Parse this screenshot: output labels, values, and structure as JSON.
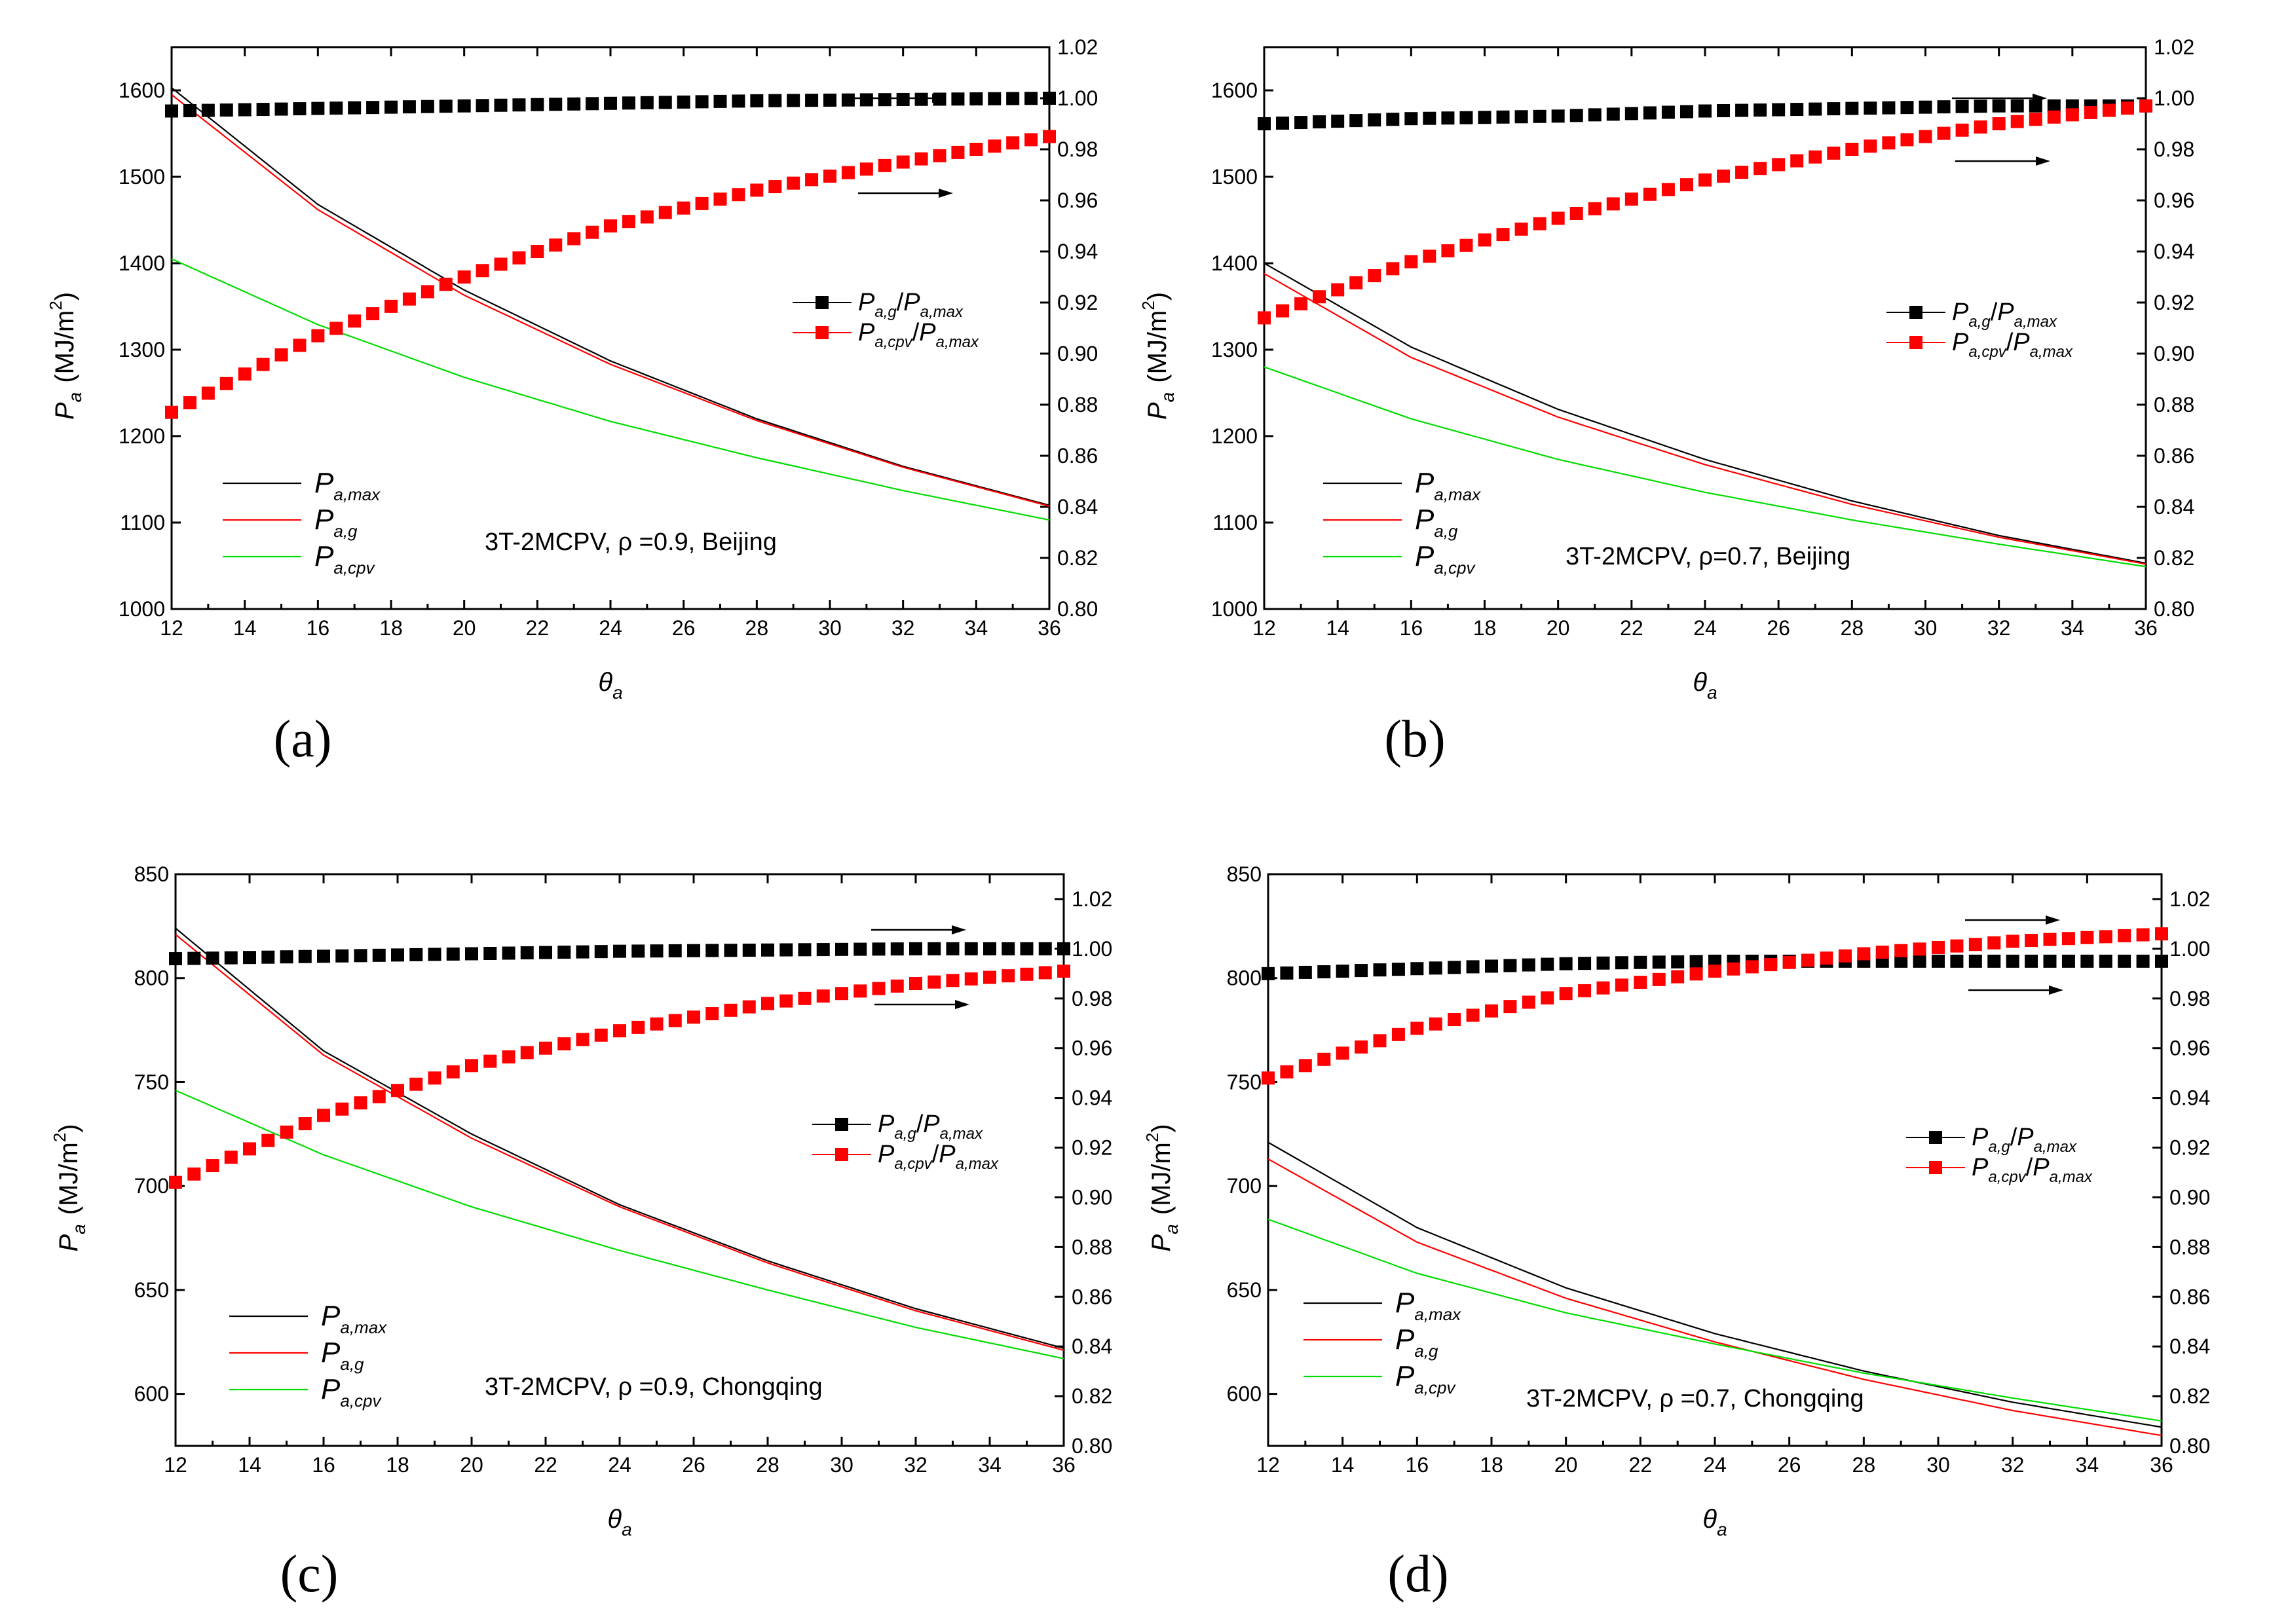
{
  "figure": {
    "panel_labels": [
      "(a)",
      "(b)",
      "(c)",
      "(d)"
    ]
  },
  "colors": {
    "max": "#000000",
    "g": "#ff0000",
    "cpv": "#00dd00",
    "axis": "#000000"
  },
  "legend": {
    "left": [
      {
        "key": "max",
        "main": "P",
        "sub": "a,max"
      },
      {
        "key": "g",
        "main": "P",
        "sub": "a,g"
      },
      {
        "key": "cpv",
        "main": "P",
        "sub": "a,cpv"
      }
    ],
    "right": [
      {
        "key": "ratio_g",
        "main1": "P",
        "sub1": "a,g",
        "slash": "/",
        "main2": "P",
        "sub2": "a,max"
      },
      {
        "key": "ratio_cpv",
        "main1": "P",
        "sub1": "a,cpv",
        "slash": "/",
        "main2": "P",
        "sub2": "a,max"
      }
    ]
  },
  "axis_text": {
    "x_main": "θ",
    "x_sub": "a",
    "y_main": "P",
    "y_sub": "a",
    "y_unit": "(MJ/m",
    "y_unit_sup": "2",
    "y_unit_close": ")"
  },
  "chart_data": [
    {
      "type": "line",
      "panel": "(a)",
      "annotation": "3T-2MCPV, ρ =0.9, Beijing",
      "x": [
        12,
        16,
        20,
        24,
        28,
        32,
        36
      ],
      "xlim": [
        12,
        36
      ],
      "xticks": [
        12,
        14,
        16,
        18,
        20,
        22,
        24,
        26,
        28,
        30,
        32,
        34,
        36
      ],
      "ylim_left": [
        1000,
        1650
      ],
      "yticks_left": [
        1000,
        1100,
        1200,
        1300,
        1400,
        1500,
        1600
      ],
      "ylim_right": [
        0.8,
        1.02
      ],
      "yticks_right": [
        0.8,
        0.82,
        0.84,
        0.86,
        0.88,
        0.9,
        0.92,
        0.94,
        0.96,
        0.98,
        1.0,
        1.02
      ],
      "series_left": [
        {
          "key": "max",
          "name": "Pa,max",
          "values": [
            1603,
            1468,
            1369,
            1287,
            1220,
            1165,
            1120
          ]
        },
        {
          "key": "g",
          "name": "Pa,g",
          "values": [
            1595,
            1462,
            1363,
            1283,
            1218,
            1164,
            1119
          ]
        },
        {
          "key": "cpv",
          "name": "Pa,cpv",
          "values": [
            1405,
            1329,
            1268,
            1217,
            1175,
            1137,
            1103
          ]
        }
      ],
      "series_right": [
        {
          "key": "ratio_g",
          "name": "Pa,g/Pa,max",
          "values": [
            0.995,
            0.996,
            0.997,
            0.998,
            0.999,
            0.9995,
            1.0
          ]
        },
        {
          "key": "ratio_cpv",
          "name": "Pa,cpv/Pa,max",
          "values": [
            0.877,
            0.907,
            0.93,
            0.95,
            0.964,
            0.975,
            0.985
          ]
        }
      ]
    },
    {
      "type": "line",
      "panel": "(b)",
      "annotation": "3T-2MCPV, ρ=0.7, Beijing",
      "x": [
        12,
        16,
        20,
        24,
        28,
        32,
        36
      ],
      "xlim": [
        12,
        36
      ],
      "xticks": [
        12,
        14,
        16,
        18,
        20,
        22,
        24,
        26,
        28,
        30,
        32,
        34,
        36
      ],
      "ylim_left": [
        1000,
        1650
      ],
      "yticks_left": [
        1000,
        1100,
        1200,
        1300,
        1400,
        1500,
        1600
      ],
      "ylim_right": [
        0.8,
        1.02
      ],
      "yticks_right": [
        0.8,
        0.82,
        0.84,
        0.86,
        0.88,
        0.9,
        0.92,
        0.94,
        0.96,
        0.98,
        1.0,
        1.02
      ],
      "series_left": [
        {
          "key": "max",
          "name": "Pa,max",
          "values": [
            1400,
            1303,
            1231,
            1173,
            1125,
            1085,
            1053
          ]
        },
        {
          "key": "g",
          "name": "Pa,g",
          "values": [
            1388,
            1291,
            1222,
            1167,
            1121,
            1083,
            1052
          ]
        },
        {
          "key": "cpv",
          "name": "Pa,cpv",
          "values": [
            1280,
            1220,
            1173,
            1135,
            1103,
            1075,
            1049
          ]
        }
      ],
      "series_right": [
        {
          "key": "ratio_g",
          "name": "Pa,g/Pa,max",
          "values": [
            0.99,
            0.992,
            0.993,
            0.995,
            0.996,
            0.997,
            0.997
          ]
        },
        {
          "key": "ratio_cpv",
          "name": "Pa,cpv/Pa,max",
          "values": [
            0.914,
            0.936,
            0.953,
            0.968,
            0.98,
            0.99,
            0.997
          ]
        }
      ]
    },
    {
      "type": "line",
      "panel": "(c)",
      "annotation": "3T-2MCPV, ρ =0.9, Chongqing",
      "x": [
        12,
        16,
        20,
        24,
        28,
        32,
        36
      ],
      "xlim": [
        12,
        36
      ],
      "xticks": [
        12,
        14,
        16,
        18,
        20,
        22,
        24,
        26,
        28,
        30,
        32,
        34,
        36
      ],
      "ylim_left": [
        575,
        850
      ],
      "yticks_left": [
        600,
        650,
        700,
        750,
        800,
        850
      ],
      "ylim_right": [
        0.8,
        1.03
      ],
      "yticks_right": [
        0.8,
        0.82,
        0.84,
        0.86,
        0.88,
        0.9,
        0.92,
        0.94,
        0.96,
        0.98,
        1.0,
        1.02
      ],
      "series_left": [
        {
          "key": "max",
          "name": "Pa,max",
          "values": [
            824,
            765,
            725,
            691,
            664,
            641,
            622
          ]
        },
        {
          "key": "g",
          "name": "Pa,g",
          "values": [
            821,
            763,
            723,
            690,
            663,
            640,
            621
          ]
        },
        {
          "key": "cpv",
          "name": "Pa,cpv",
          "values": [
            746,
            715,
            690,
            669,
            650,
            632,
            617
          ]
        }
      ],
      "series_right": [
        {
          "key": "ratio_g",
          "name": "Pa,g/Pa,max",
          "values": [
            0.996,
            0.997,
            0.998,
            0.999,
            0.9995,
            1.0,
            1.0
          ]
        },
        {
          "key": "ratio_cpv",
          "name": "Pa,cpv/Pa,max",
          "values": [
            0.906,
            0.933,
            0.953,
            0.967,
            0.978,
            0.986,
            0.991
          ]
        }
      ]
    },
    {
      "type": "line",
      "panel": "(d)",
      "annotation": "3T-2MCPV, ρ =0.7, Chongqing",
      "x": [
        12,
        16,
        20,
        24,
        28,
        32,
        36
      ],
      "xlim": [
        12,
        36
      ],
      "xticks": [
        12,
        14,
        16,
        18,
        20,
        22,
        24,
        26,
        28,
        30,
        32,
        34,
        36
      ],
      "ylim_left": [
        575,
        850
      ],
      "yticks_left": [
        600,
        650,
        700,
        750,
        800,
        850
      ],
      "ylim_right": [
        0.8,
        1.03
      ],
      "yticks_right": [
        0.8,
        0.82,
        0.84,
        0.86,
        0.88,
        0.9,
        0.92,
        0.94,
        0.96,
        0.98,
        1.0,
        1.02
      ],
      "series_left": [
        {
          "key": "max",
          "name": "Pa,max",
          "values": [
            721,
            680,
            651,
            629,
            611,
            596,
            584
          ]
        },
        {
          "key": "g",
          "name": "Pa,g",
          "values": [
            713,
            673,
            646,
            625,
            607,
            592,
            580
          ]
        },
        {
          "key": "cpv",
          "name": "Pa,cpv",
          "values": [
            684,
            658,
            639,
            624,
            610,
            598,
            587
          ]
        }
      ],
      "series_right": [
        {
          "key": "ratio_g",
          "name": "Pa,g/Pa,max",
          "values": [
            0.99,
            0.992,
            0.994,
            0.995,
            0.995,
            0.995,
            0.995
          ]
        },
        {
          "key": "ratio_cpv",
          "name": "Pa,cpv/Pa,max",
          "values": [
            0.948,
            0.968,
            0.982,
            0.991,
            0.998,
            1.003,
            1.006
          ]
        }
      ]
    }
  ]
}
